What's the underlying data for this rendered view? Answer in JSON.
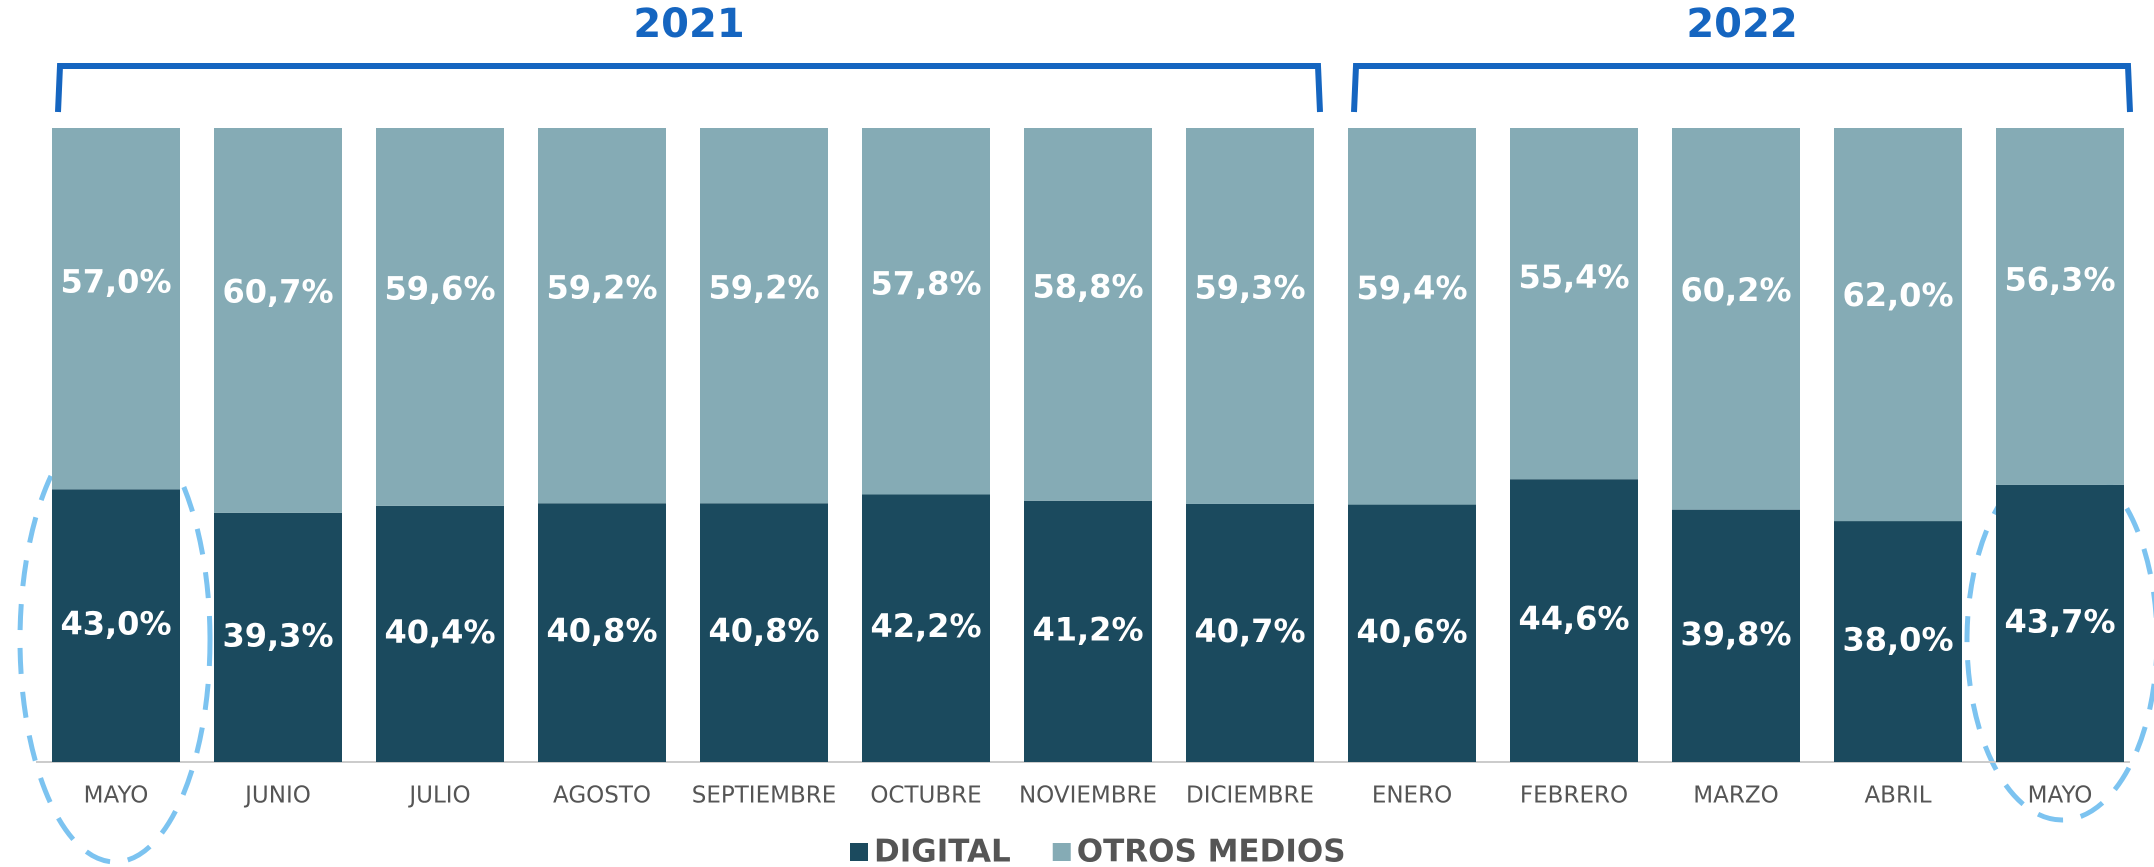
{
  "chart_data": {
    "type": "stacked_bar",
    "annotations": [
      "2021",
      "2022"
    ],
    "categories": [
      "MAYO",
      "JUNIO",
      "JULIO",
      "AGOSTO",
      "SEPTIEMBRE",
      "OCTUBRE",
      "NOVIEMBRE",
      "DICIEMBRE",
      "ENERO",
      "FEBRERO",
      "MARZO",
      "ABRIL",
      "MAYO"
    ],
    "series": [
      {
        "name": "DIGITAL",
        "color": "#1b4a5e",
        "values": [
          43.0,
          39.3,
          40.4,
          40.8,
          40.8,
          42.2,
          41.2,
          40.7,
          40.6,
          44.6,
          39.8,
          38.0,
          43.7
        ],
        "value_labels": [
          "43,0%",
          "39,3%",
          "40,4%",
          "40,8%",
          "40,8%",
          "42,2%",
          "41,2%",
          "40,7%",
          "40,6%",
          "44,6%",
          "39,8%",
          "38,0%",
          "43,7%"
        ]
      },
      {
        "name": "OTROS MEDIOS",
        "color": "#85abb5",
        "values": [
          57.0,
          60.7,
          59.6,
          59.2,
          59.2,
          57.8,
          58.8,
          59.3,
          59.4,
          55.4,
          60.2,
          62.0,
          56.3
        ],
        "value_labels": [
          "57,0%",
          "60,7%",
          "59,6%",
          "59,2%",
          "59,2%",
          "57,8%",
          "58,8%",
          "59,3%",
          "59,4%",
          "55,4%",
          "60,2%",
          "62,0%",
          "56,3%"
        ]
      }
    ]
  }
}
